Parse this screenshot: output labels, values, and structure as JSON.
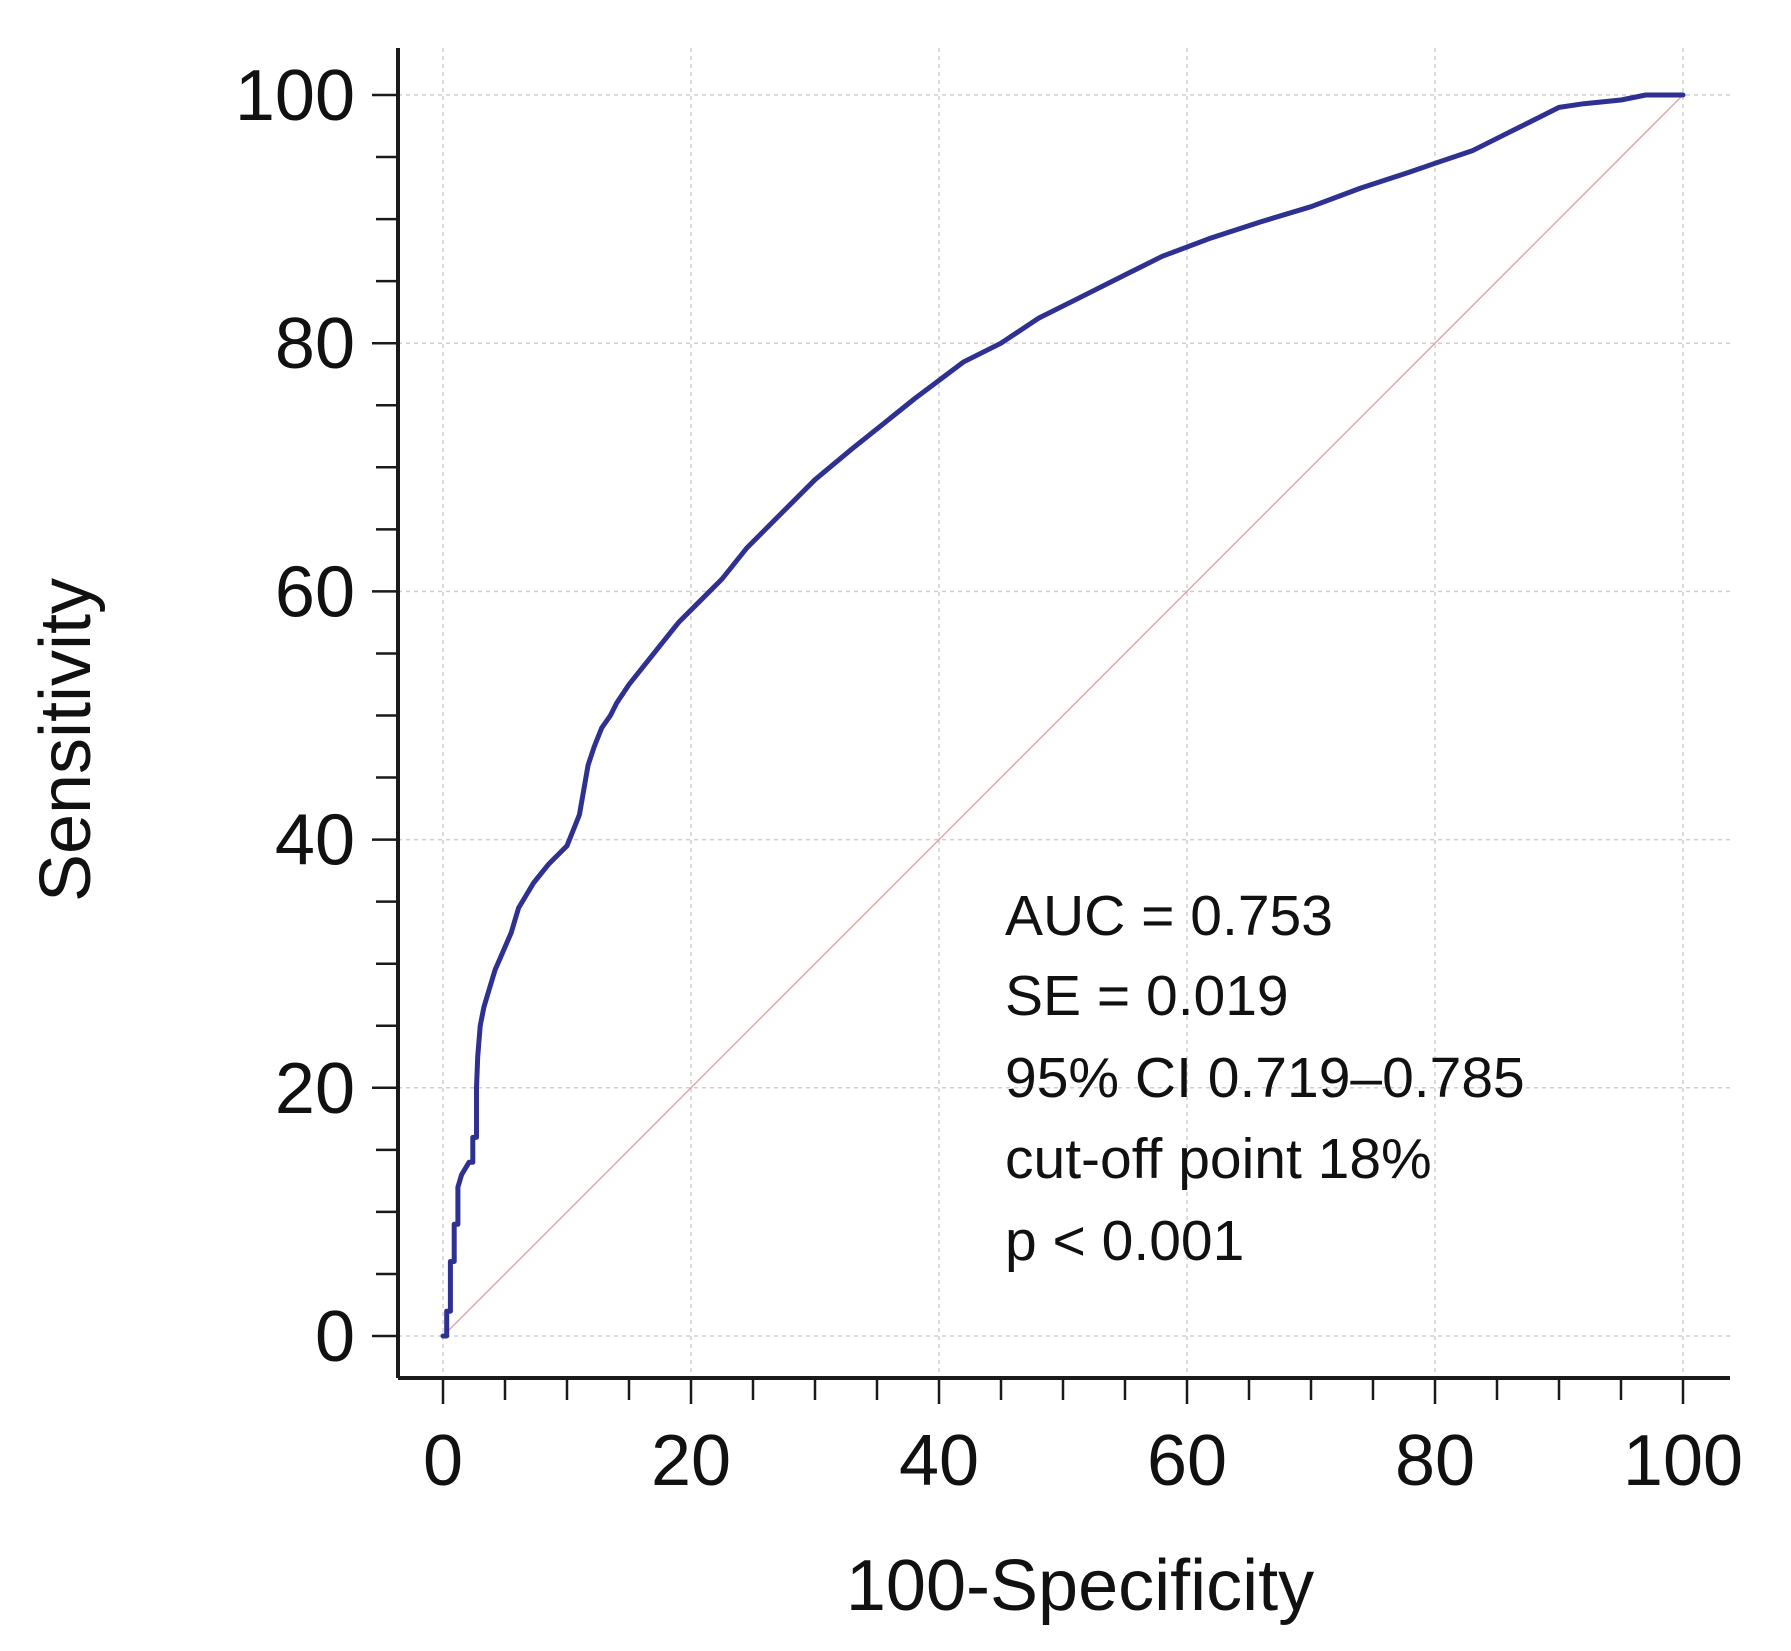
{
  "chart_data": {
    "type": "line",
    "title": "",
    "xlabel": "100-Specificity",
    "ylabel": "Sensitivity",
    "xlim": [
      0,
      100
    ],
    "ylim": [
      0,
      100
    ],
    "x_ticks": [
      0,
      20,
      40,
      60,
      80,
      100
    ],
    "y_ticks": [
      0,
      20,
      40,
      60,
      80,
      100
    ],
    "x_tick_labels": [
      "0",
      "20",
      "40",
      "60",
      "80",
      "100"
    ],
    "y_tick_labels": [
      "0",
      "20",
      "40",
      "60",
      "80",
      "100"
    ],
    "grid": true,
    "series": [
      {
        "name": "ROC curve",
        "color": "#2e3192",
        "x": [
          0,
          0.3,
          0.3,
          0.6,
          0.6,
          0.9,
          0.9,
          1.2,
          1.2,
          1.5,
          1.8,
          2.1,
          2.4,
          2.4,
          2.7,
          2.7,
          2.8,
          3.0,
          3.3,
          3.6,
          4.2,
          5.5,
          6.1,
          6.7,
          7.3,
          8.5,
          10.0,
          11.0,
          11.7,
          12.2,
          12.8,
          13.5,
          14.0,
          15.0,
          17.0,
          19.0,
          20.5,
          22.5,
          24.5,
          27.0,
          30.0,
          33.0,
          35.5,
          38.0,
          40.0,
          42.0,
          45.0,
          48.0,
          51.0,
          55.0,
          58.0,
          62.0,
          66.0,
          70.0,
          74.0,
          78.0,
          80.0,
          83.0,
          86.0,
          89.0,
          90.0,
          92.0,
          95.0,
          97.0,
          98.0,
          100.0
        ],
        "y": [
          0,
          0,
          2,
          2,
          6,
          6,
          9,
          9,
          12,
          13,
          13.5,
          14,
          14,
          16,
          16,
          20,
          22.5,
          25,
          26.5,
          27.5,
          29.5,
          32.5,
          34.5,
          35.5,
          36.5,
          38,
          39.5,
          42,
          46,
          47.5,
          49,
          50,
          51,
          52.5,
          55,
          57.5,
          59,
          61,
          63.5,
          66,
          69,
          71.5,
          73.5,
          75.5,
          77,
          78.5,
          80,
          82,
          83.5,
          85.5,
          87,
          88.5,
          89.8,
          91,
          92.5,
          93.8,
          94.5,
          95.5,
          97,
          98.5,
          99,
          99.3,
          99.6,
          100,
          100,
          100
        ]
      },
      {
        "name": "Reference line",
        "color": "#e2a8a8",
        "x": [
          0,
          100
        ],
        "y": [
          0,
          100
        ]
      }
    ],
    "annotations": [
      "AUC = 0.753",
      "SE = 0.019",
      "95% CI 0.719–0.785",
      "cut-off point 18%",
      "p < 0.001"
    ],
    "colors": {
      "axis": "#1a1a1a",
      "grid": "#cfcfcf",
      "text": "#111111"
    }
  }
}
